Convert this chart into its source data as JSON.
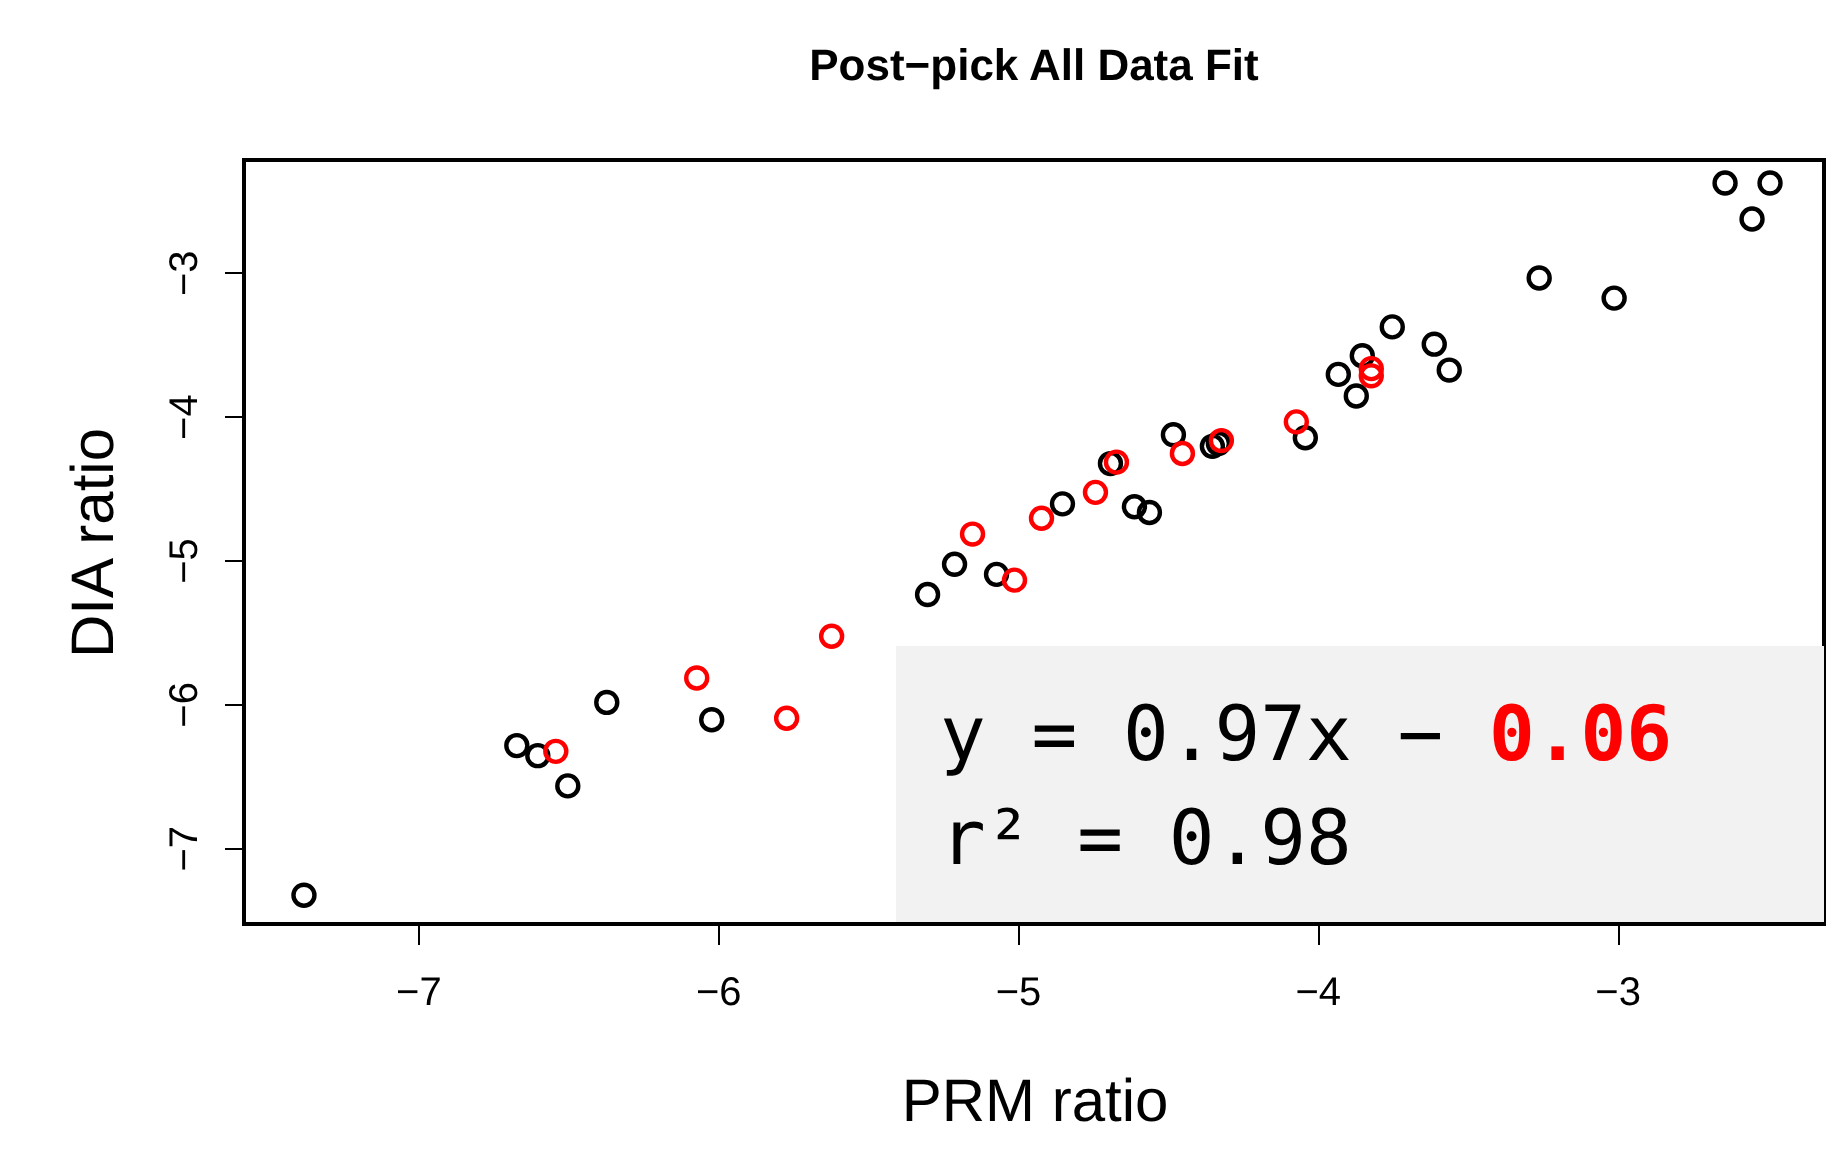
{
  "chart_data": {
    "type": "scatter",
    "title": "Post−pick All Data Fit",
    "xlabel": "PRM ratio",
    "ylabel": "DIA ratio",
    "xlim": [
      -7.58,
      -2.31
    ],
    "ylim": [
      -7.53,
      -2.22
    ],
    "xticks": [
      -7,
      -6,
      -5,
      -4,
      -3
    ],
    "yticks": [
      -7,
      -6,
      -5,
      -4,
      -3
    ],
    "grid": false,
    "legend": false,
    "marker": "circle",
    "annotations": [
      "y = 0.97x − 0.06",
      "r² = 0.98"
    ],
    "series": [
      {
        "color": "#000000",
        "x": [
          -7.38,
          -6.67,
          -6.6,
          -6.5,
          -6.37,
          -6.02,
          -5.3,
          -5.21,
          -5.07,
          -4.85,
          -4.69,
          -4.61,
          -4.56,
          -4.48,
          -4.35,
          -4.33,
          -4.04,
          -3.93,
          -3.85,
          -3.87,
          -3.75,
          -3.61,
          -3.56,
          -3.26,
          -3.01,
          -2.64,
          -2.49,
          -2.55
        ],
        "values": [
          -7.33,
          -6.29,
          -6.36,
          -6.57,
          -5.99,
          -6.11,
          -5.24,
          -5.03,
          -5.1,
          -4.61,
          -4.33,
          -4.63,
          -4.67,
          -4.13,
          -4.21,
          -4.19,
          -4.15,
          -3.71,
          -3.58,
          -3.86,
          -3.38,
          -3.5,
          -3.68,
          -3.04,
          -3.18,
          -2.38,
          -2.38,
          -2.63
        ]
      },
      {
        "color": "#ff0000",
        "x": [
          -6.54,
          -6.07,
          -5.77,
          -5.62,
          -5.15,
          -5.01,
          -4.92,
          -4.74,
          -4.67,
          -4.45,
          -4.32,
          -4.07,
          -3.82,
          -3.82
        ],
        "values": [
          -6.33,
          -5.82,
          -6.1,
          -5.53,
          -4.82,
          -5.14,
          -4.71,
          -4.53,
          -4.32,
          -4.26,
          -4.17,
          -4.04,
          -3.67,
          -3.72
        ]
      }
    ]
  }
}
